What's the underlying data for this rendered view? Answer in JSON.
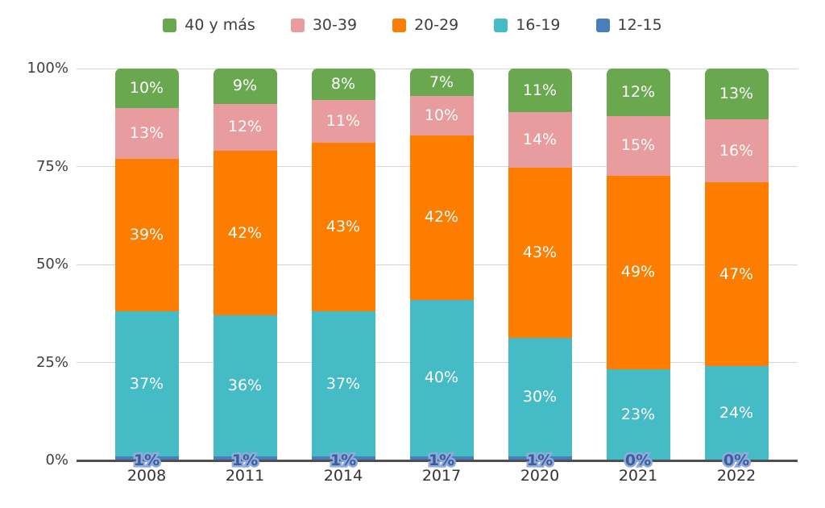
{
  "chart_data": {
    "type": "bar",
    "stacked": true,
    "percent": true,
    "title": "",
    "xlabel": "",
    "ylabel": "",
    "categories": [
      "2008",
      "2011",
      "2014",
      "2017",
      "2020",
      "2021",
      "2022"
    ],
    "series": [
      {
        "name": "12-15",
        "color": "#4a7ebb",
        "values": [
          1,
          1,
          1,
          1,
          1,
          0,
          0
        ]
      },
      {
        "name": "16-19",
        "color": "#45bbc5",
        "values": [
          37,
          36,
          37,
          40,
          30,
          23,
          24
        ]
      },
      {
        "name": "20-29",
        "color": "#fd7d00",
        "values": [
          39,
          42,
          43,
          42,
          43,
          49,
          47
        ]
      },
      {
        "name": "30-39",
        "color": "#e99c9e",
        "values": [
          13,
          12,
          11,
          10,
          14,
          15,
          16
        ]
      },
      {
        "name": "40 y más",
        "color": "#6aa84f",
        "values": [
          10,
          9,
          8,
          7,
          11,
          12,
          13
        ]
      }
    ],
    "legend_order": [
      "40 y más",
      "30-39",
      "20-29",
      "16-19",
      "12-15"
    ],
    "legend_position": "top",
    "y_ticks": [
      "0%",
      "25%",
      "50%",
      "75%",
      "100%"
    ],
    "ylim": [
      0,
      100
    ],
    "grid": true,
    "data_label_suffix": "%",
    "outside_label_text_color": "#3b5e97",
    "outside_label_outline_color": "#8faadc",
    "gridline_color": "#d4d4d4",
    "axis_line_color": "#4f4f4f"
  }
}
